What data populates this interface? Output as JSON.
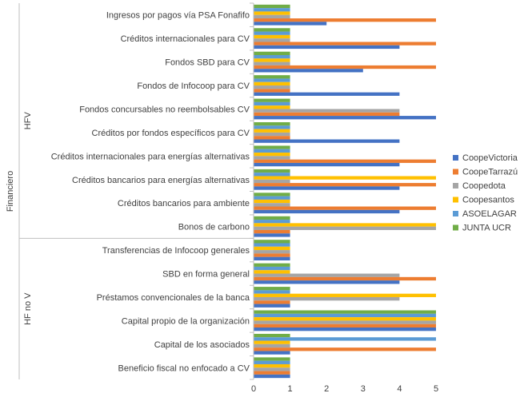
{
  "chart_data": {
    "type": "bar",
    "orientation": "horizontal",
    "xlim": [
      0,
      5
    ],
    "xticks": [
      "0",
      "1",
      "2",
      "3",
      "4",
      "5"
    ],
    "grid": false,
    "legend_position": "right",
    "categories": [
      "Ingresos por pagos vía PSA Fonafifo",
      "Créditos internacionales para CV",
      "Fondos SBD para CV",
      "Fondos de Infocoop para CV",
      "Fondos concursables no reembolsables CV",
      "Créditos por fondos específicos para CV",
      "Créditos internacionales para energías alternativas",
      "Créditos bancarios para energías alternativas",
      "Créditos bancarios para ambiente",
      "Bonos de carbono",
      "Transferencias de Infocoop generales",
      "SBD en forma general",
      "Préstamos convencionales de la banca",
      "Capital propio de la organización",
      "Capital de los asociados",
      "Beneficio fiscal no enfocado a CV"
    ],
    "series": [
      {
        "name": "JUNTA UCR",
        "color": "#70AD47",
        "values": [
          1,
          1,
          1,
          1,
          1,
          1,
          1,
          1,
          1,
          1,
          1,
          1,
          1,
          5,
          1,
          1
        ]
      },
      {
        "name": "ASOELAGAR",
        "color": "#5B9BD5",
        "values": [
          1,
          1,
          1,
          1,
          1,
          1,
          1,
          1,
          1,
          1,
          1,
          1,
          1,
          5,
          5,
          1
        ]
      },
      {
        "name": "Coopesantos",
        "color": "#FFC000",
        "values": [
          1,
          1,
          1,
          1,
          1,
          1,
          1,
          5,
          1,
          5,
          1,
          1,
          5,
          5,
          1,
          1
        ]
      },
      {
        "name": "Coopedota",
        "color": "#A5A5A5",
        "values": [
          1,
          1,
          1,
          1,
          4,
          1,
          1,
          1,
          1,
          5,
          1,
          4,
          4,
          5,
          1,
          1
        ]
      },
      {
        "name": "CoopeTarrazú",
        "color": "#ED7D31",
        "values": [
          5,
          5,
          5,
          1,
          4,
          1,
          5,
          5,
          5,
          1,
          1,
          5,
          1,
          5,
          5,
          1
        ]
      },
      {
        "name": "CoopeVictoria",
        "color": "#4472C4",
        "values": [
          2,
          4,
          3,
          4,
          5,
          4,
          4,
          4,
          4,
          1,
          1,
          4,
          1,
          5,
          1,
          1
        ]
      }
    ],
    "groups": [
      {
        "label": "HFV",
        "first": 0,
        "last": 9
      },
      {
        "label": "HF no V",
        "first": 10,
        "last": 15
      }
    ],
    "outer_group": {
      "label": "Financiero"
    }
  }
}
